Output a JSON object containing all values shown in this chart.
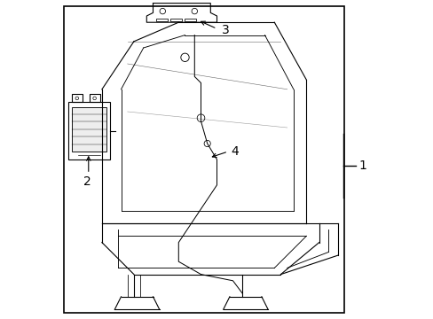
{
  "background_color": "#ffffff",
  "border_color": "#000000",
  "line_color": "#000000",
  "label_color": "#000000",
  "label_fontsize": 10,
  "figsize": [
    4.89,
    3.6
  ],
  "dpi": 100
}
